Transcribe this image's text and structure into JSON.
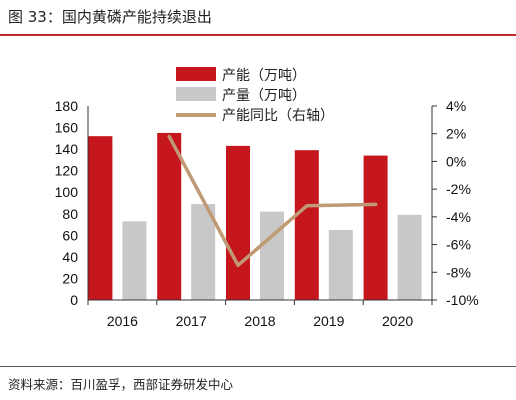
{
  "figure": {
    "title": "图 33：国内黄磷产能持续退出",
    "source": "资料来源：百川盈孚，西部证券研发中心"
  },
  "chart_data": {
    "type": "bar",
    "categories": [
      "2016",
      "2017",
      "2018",
      "2019",
      "2020"
    ],
    "series": [
      {
        "name": "产能（万吨）",
        "type": "bar",
        "axis": "left",
        "color": "#c4161c",
        "values": [
          152,
          155,
          143,
          139,
          134
        ]
      },
      {
        "name": "产量（万吨）",
        "type": "bar",
        "axis": "left",
        "color": "#c8c8c8",
        "values": [
          73,
          89,
          82,
          65,
          79
        ]
      },
      {
        "name": "产能同比（右轴）",
        "type": "line",
        "axis": "right",
        "color": "#c09a74",
        "values": [
          null,
          1.8,
          -7.5,
          -3.2,
          -3.1
        ]
      }
    ],
    "yleft": {
      "lim": [
        0,
        180
      ],
      "ticks": [
        "0",
        "20",
        "40",
        "60",
        "80",
        "100",
        "120",
        "140",
        "160",
        "180"
      ]
    },
    "yright": {
      "lim": [
        -10,
        4
      ],
      "ticks": [
        "-10%",
        "-8%",
        "-6%",
        "-4%",
        "-2%",
        "0%",
        "2%",
        "4%"
      ]
    },
    "grid": false,
    "legend_position": "top-center"
  }
}
